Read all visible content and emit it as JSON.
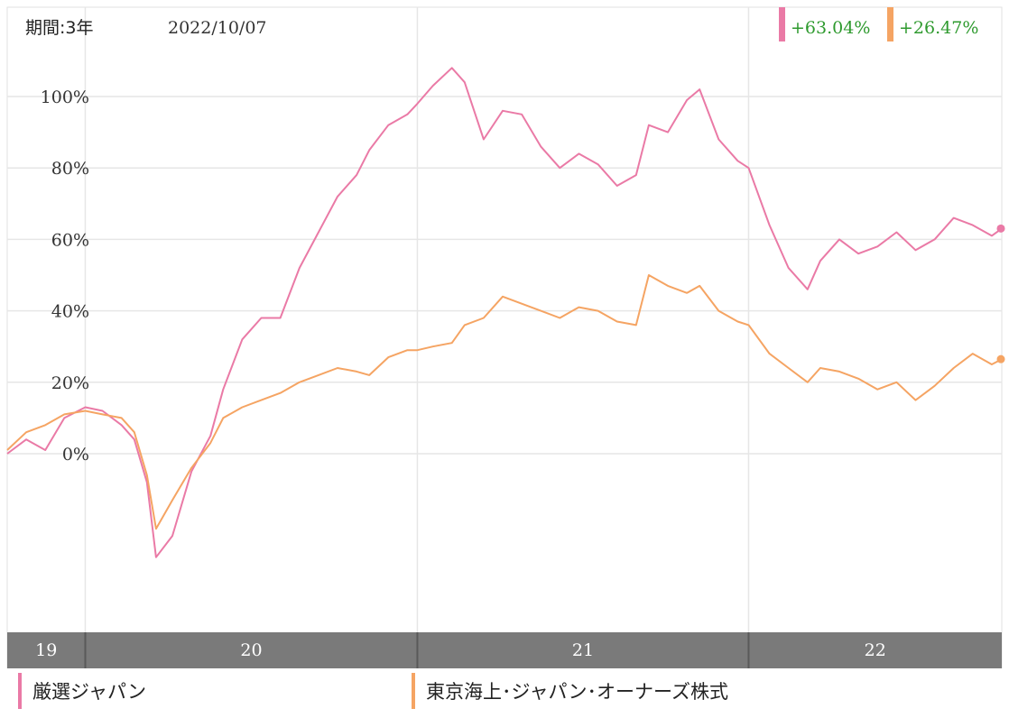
{
  "header": {
    "period_label": "期間:3年",
    "date": "2022/10/07",
    "badges": [
      {
        "value": "+63.04%",
        "color": "#ea7aa6"
      },
      {
        "value": "+26.47%",
        "color": "#f5a463"
      }
    ]
  },
  "legend": [
    {
      "label": "厳選ジャパン",
      "color": "#ea7aa6"
    },
    {
      "label": "東京海上･ジャパン･オーナーズ株式",
      "color": "#f5a463"
    }
  ],
  "colors": {
    "gain_text": "#2e9a2e",
    "axis_band": "#7a7a7a",
    "grid": "#e6e6e6"
  },
  "chart_data": {
    "type": "line",
    "title": "",
    "xlabel": "",
    "ylabel": "",
    "x_range": [
      "2019-10-07",
      "2022-10-07"
    ],
    "ylim": [
      -50,
      125
    ],
    "y_ticks": [
      0,
      20,
      40,
      60,
      80,
      100
    ],
    "y_tick_labels": [
      "0%",
      "20%",
      "40%",
      "60%",
      "80%",
      "100%"
    ],
    "x_ticks": [
      {
        "date": "2019-10-07",
        "label": "19"
      },
      {
        "date": "2020-01-01",
        "label": "20"
      },
      {
        "date": "2021-01-01",
        "label": "21"
      },
      {
        "date": "2022-01-01",
        "label": "22"
      }
    ],
    "grid": true,
    "series": [
      {
        "name": "厳選ジャパン",
        "color": "#ea7aa6",
        "final_value": "+63.04%",
        "points": [
          [
            "2019-10-07",
            0
          ],
          [
            "2019-10-28",
            4
          ],
          [
            "2019-11-18",
            1
          ],
          [
            "2019-12-09",
            10
          ],
          [
            "2020-01-01",
            13
          ],
          [
            "2020-01-20",
            12
          ],
          [
            "2020-02-10",
            8
          ],
          [
            "2020-02-24",
            4
          ],
          [
            "2020-03-09",
            -8
          ],
          [
            "2020-03-19",
            -29
          ],
          [
            "2020-04-06",
            -23
          ],
          [
            "2020-04-27",
            -5
          ],
          [
            "2020-05-18",
            5
          ],
          [
            "2020-06-01",
            18
          ],
          [
            "2020-06-22",
            32
          ],
          [
            "2020-07-13",
            38
          ],
          [
            "2020-08-03",
            38
          ],
          [
            "2020-08-24",
            52
          ],
          [
            "2020-09-14",
            62
          ],
          [
            "2020-10-05",
            72
          ],
          [
            "2020-10-26",
            78
          ],
          [
            "2020-11-09",
            85
          ],
          [
            "2020-11-30",
            92
          ],
          [
            "2020-12-21",
            95
          ],
          [
            "2021-01-01",
            98
          ],
          [
            "2021-01-18",
            103
          ],
          [
            "2021-02-08",
            108
          ],
          [
            "2021-02-22",
            104
          ],
          [
            "2021-03-15",
            88
          ],
          [
            "2021-04-05",
            96
          ],
          [
            "2021-04-26",
            95
          ],
          [
            "2021-05-17",
            86
          ],
          [
            "2021-06-07",
            80
          ],
          [
            "2021-06-28",
            84
          ],
          [
            "2021-07-19",
            81
          ],
          [
            "2021-08-09",
            75
          ],
          [
            "2021-08-30",
            78
          ],
          [
            "2021-09-13",
            92
          ],
          [
            "2021-10-04",
            90
          ],
          [
            "2021-10-25",
            99
          ],
          [
            "2021-11-08",
            102
          ],
          [
            "2021-11-29",
            88
          ],
          [
            "2021-12-20",
            82
          ],
          [
            "2022-01-01",
            80
          ],
          [
            "2022-01-24",
            64
          ],
          [
            "2022-02-14",
            52
          ],
          [
            "2022-03-07",
            46
          ],
          [
            "2022-03-21",
            54
          ],
          [
            "2022-04-11",
            60
          ],
          [
            "2022-05-02",
            56
          ],
          [
            "2022-05-23",
            58
          ],
          [
            "2022-06-13",
            62
          ],
          [
            "2022-07-04",
            57
          ],
          [
            "2022-07-25",
            60
          ],
          [
            "2022-08-15",
            66
          ],
          [
            "2022-09-05",
            64
          ],
          [
            "2022-09-26",
            61
          ],
          [
            "2022-10-07",
            63.04
          ]
        ]
      },
      {
        "name": "東京海上･ジャパン･オーナーズ株式",
        "color": "#f5a463",
        "final_value": "+26.47%",
        "points": [
          [
            "2019-10-07",
            1
          ],
          [
            "2019-10-28",
            6
          ],
          [
            "2019-11-18",
            8
          ],
          [
            "2019-12-09",
            11
          ],
          [
            "2020-01-01",
            12
          ],
          [
            "2020-01-20",
            11
          ],
          [
            "2020-02-10",
            10
          ],
          [
            "2020-02-24",
            6
          ],
          [
            "2020-03-09",
            -6
          ],
          [
            "2020-03-19",
            -21
          ],
          [
            "2020-04-06",
            -13
          ],
          [
            "2020-04-27",
            -4
          ],
          [
            "2020-05-18",
            3
          ],
          [
            "2020-06-01",
            10
          ],
          [
            "2020-06-22",
            13
          ],
          [
            "2020-07-13",
            15
          ],
          [
            "2020-08-03",
            17
          ],
          [
            "2020-08-24",
            20
          ],
          [
            "2020-09-14",
            22
          ],
          [
            "2020-10-05",
            24
          ],
          [
            "2020-10-26",
            23
          ],
          [
            "2020-11-09",
            22
          ],
          [
            "2020-11-30",
            27
          ],
          [
            "2020-12-21",
            29
          ],
          [
            "2021-01-01",
            29
          ],
          [
            "2021-01-18",
            30
          ],
          [
            "2021-02-08",
            31
          ],
          [
            "2021-02-22",
            36
          ],
          [
            "2021-03-15",
            38
          ],
          [
            "2021-04-05",
            44
          ],
          [
            "2021-04-26",
            42
          ],
          [
            "2021-05-17",
            40
          ],
          [
            "2021-06-07",
            38
          ],
          [
            "2021-06-28",
            41
          ],
          [
            "2021-07-19",
            40
          ],
          [
            "2021-08-09",
            37
          ],
          [
            "2021-08-30",
            36
          ],
          [
            "2021-09-13",
            50
          ],
          [
            "2021-10-04",
            47
          ],
          [
            "2021-10-25",
            45
          ],
          [
            "2021-11-08",
            47
          ],
          [
            "2021-11-29",
            40
          ],
          [
            "2021-12-20",
            37
          ],
          [
            "2022-01-01",
            36
          ],
          [
            "2022-01-24",
            28
          ],
          [
            "2022-02-14",
            24
          ],
          [
            "2022-03-07",
            20
          ],
          [
            "2022-03-21",
            24
          ],
          [
            "2022-04-11",
            23
          ],
          [
            "2022-05-02",
            21
          ],
          [
            "2022-05-23",
            18
          ],
          [
            "2022-06-13",
            20
          ],
          [
            "2022-07-04",
            15
          ],
          [
            "2022-07-25",
            19
          ],
          [
            "2022-08-15",
            24
          ],
          [
            "2022-09-05",
            28
          ],
          [
            "2022-09-26",
            25
          ],
          [
            "2022-10-07",
            26.47
          ]
        ]
      }
    ]
  }
}
